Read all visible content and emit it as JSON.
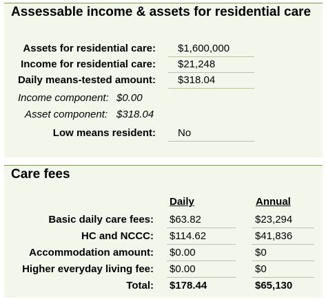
{
  "assessable": {
    "title": "Assessable income & assets for residential care",
    "assets_label": "Assets for residential care:",
    "assets_value": "$1,600,000",
    "income_label": "Income for residential care:",
    "income_value": "$21,248",
    "dmta_label": "Daily means-tested amount:",
    "dmta_value": "$318.04",
    "income_component_label": "Income component:",
    "income_component_value": "$0.00",
    "asset_component_label": "Asset component:",
    "asset_component_value": "$318.04",
    "low_means_label": "Low means resident:",
    "low_means_value": "No"
  },
  "care_fees": {
    "title": "Care fees",
    "col_daily": "Daily",
    "col_annual": "Annual",
    "rows": [
      {
        "label": "Basic daily care fees:",
        "daily": "$63.82",
        "annual": "$23,294"
      },
      {
        "label": "HC and NCCC:",
        "daily": "$114.62",
        "annual": "$41,836"
      },
      {
        "label": "Accommodation amount:",
        "daily": "$0.00",
        "annual": "$0"
      },
      {
        "label": "Higher everyday living fee:",
        "daily": "$0.00",
        "annual": "$0"
      }
    ],
    "total_label": "Total:",
    "total_daily": "$178.44",
    "total_annual": "$65,130"
  }
}
